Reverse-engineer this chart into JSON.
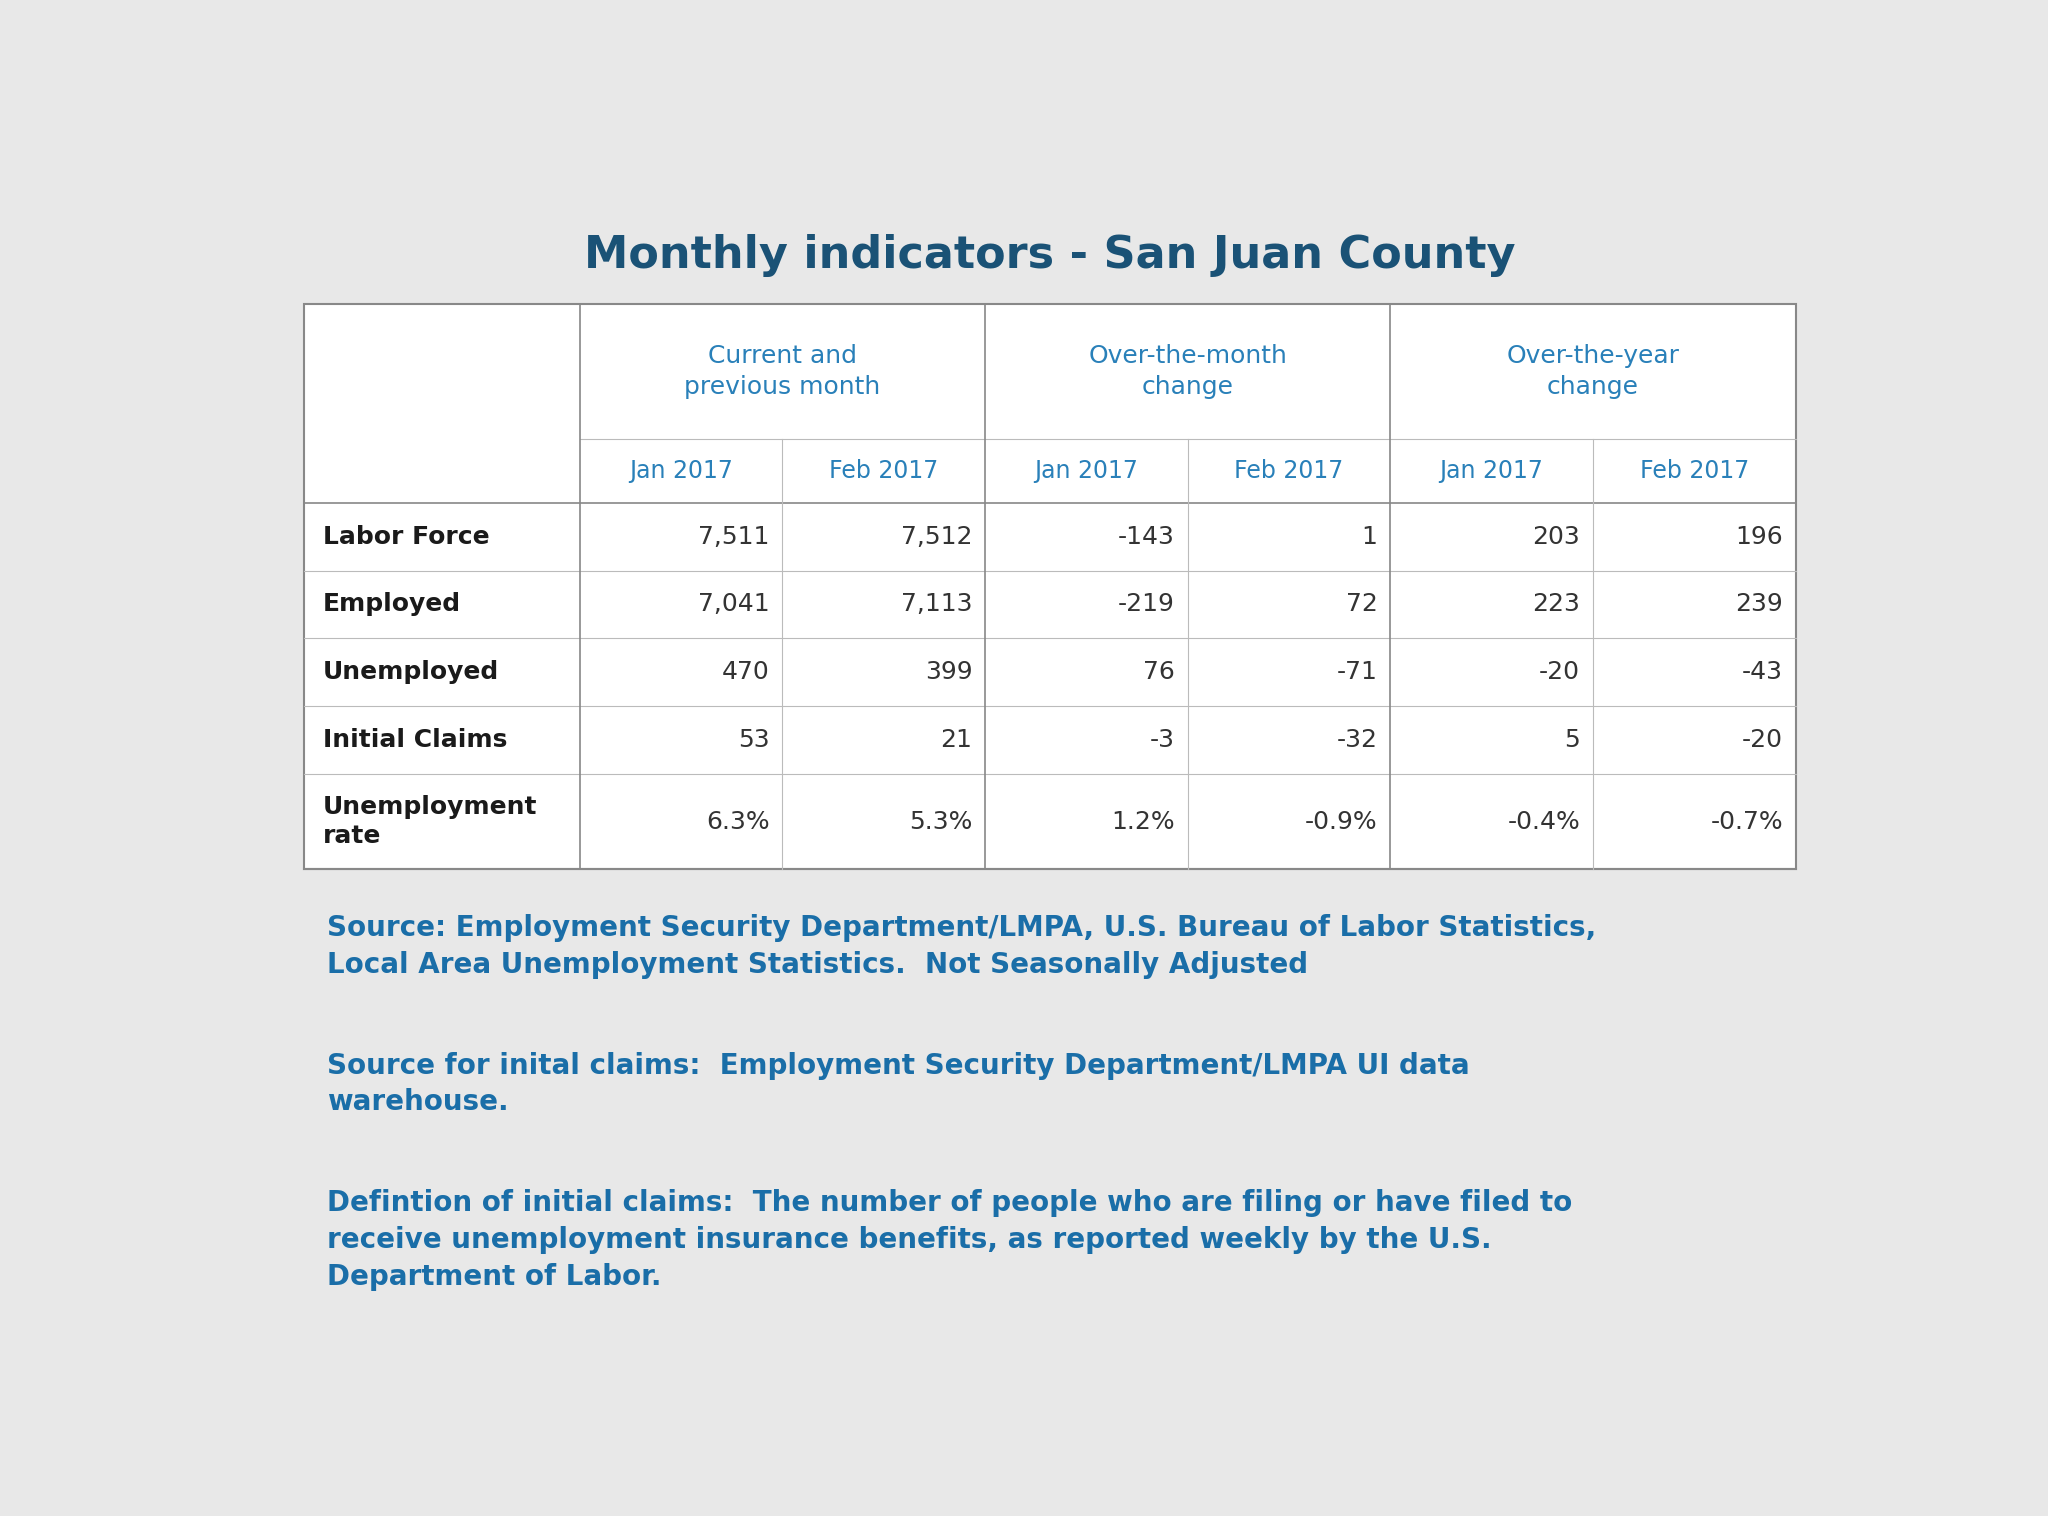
{
  "title": "Monthly indicators - San Juan County",
  "title_color": "#1a5276",
  "title_fontsize": 32,
  "background_color": "#e8e8e8",
  "table_bg_color": "#ffffff",
  "header_color": "#2980b9",
  "body_text_color": "#1a1a1a",
  "data_text_color": "#333333",
  "col_group_headers": [
    "Current and\nprevious month",
    "Over-the-month\nchange",
    "Over-the-year\nchange"
  ],
  "col_sub_headers": [
    "Jan 2017",
    "Feb 2017",
    "Jan 2017",
    "Feb 2017",
    "Jan 2017",
    "Feb 2017"
  ],
  "row_labels": [
    "Labor Force",
    "Employed",
    "Unemployed",
    "Initial Claims",
    "Unemployment\nrate"
  ],
  "table_data": [
    [
      "7,511",
      "7,512",
      "-143",
      "1",
      "203",
      "196"
    ],
    [
      "7,041",
      "7,113",
      "-219",
      "72",
      "223",
      "239"
    ],
    [
      "470",
      "399",
      "76",
      "-71",
      "-20",
      "-43"
    ],
    [
      "53",
      "21",
      "-3",
      "-32",
      "5",
      "-20"
    ],
    [
      "6.3%",
      "5.3%",
      "1.2%",
      "-0.9%",
      "-0.4%",
      "-0.7%"
    ]
  ],
  "source_lines": [
    "Source: Employment Security Department/LMPA, U.S. Bureau of Labor Statistics,\nLocal Area Unemployment Statistics.  Not Seasonally Adjusted",
    "Source for inital claims:  Employment Security Department/LMPA UI data\nwarehouse.",
    "Defintion of initial claims:  The number of people who are filing or have filed to\nreceive unemployment insurance benefits, as reported weekly by the U.S.\nDepartment of Labor."
  ],
  "source_color": "#1a6ea8",
  "source_fontsize": 20,
  "line_color_major": "#888888",
  "line_color_minor": "#bbbbbb"
}
